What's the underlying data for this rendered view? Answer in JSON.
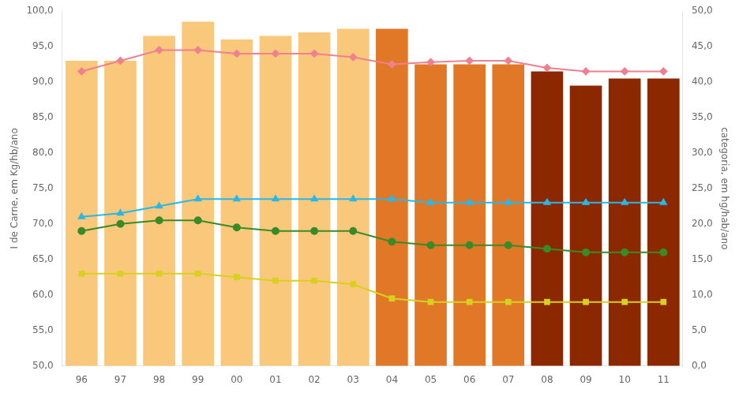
{
  "chart_data": {
    "type": "bar",
    "categories": [
      "96",
      "97",
      "98",
      "99",
      "00",
      "01",
      "02",
      "03",
      "04",
      "05",
      "06",
      "07",
      "08",
      "09",
      "10",
      "11"
    ],
    "ylabel": "I de Carne, em Kg/hb/ano",
    "y2label": "categoria, em hg/hab/ano",
    "ylim": [
      50.0,
      100.0
    ],
    "yticks": [
      {
        "value": 50.0,
        "label": "50,0"
      },
      {
        "value": 55.0,
        "label": "55,0"
      },
      {
        "value": 60.0,
        "label": "60,0"
      },
      {
        "value": 65.0,
        "label": "65,0"
      },
      {
        "value": 70.0,
        "label": "70,0"
      },
      {
        "value": 75.0,
        "label": "75,0"
      },
      {
        "value": 80.0,
        "label": "80,0"
      },
      {
        "value": 85.0,
        "label": "85,0"
      },
      {
        "value": 90.0,
        "label": "90,0"
      },
      {
        "value": 95.0,
        "label": "95,0"
      },
      {
        "value": 100.0,
        "label": "100,0"
      }
    ],
    "y2lim": [
      0.0,
      50.0
    ],
    "y2ticks": [
      {
        "value": 0.0,
        "label": "0,0"
      },
      {
        "value": 5.0,
        "label": "5,0"
      },
      {
        "value": 10.0,
        "label": "10,0"
      },
      {
        "value": 15.0,
        "label": "15,0"
      },
      {
        "value": 20.0,
        "label": "20,0"
      },
      {
        "value": 25.0,
        "label": "25,0"
      },
      {
        "value": 30.0,
        "label": "30,0"
      },
      {
        "value": 35.0,
        "label": "35,0"
      },
      {
        "value": 40.0,
        "label": "40,0"
      },
      {
        "value": 45.0,
        "label": "45,0"
      },
      {
        "value": 50.0,
        "label": "50,0"
      }
    ],
    "grid": false,
    "series": [
      {
        "type": "bar",
        "colors": [
          "#f9c87a",
          "#f9c87a",
          "#f9c87a",
          "#f9c87a",
          "#f9c87a",
          "#f9c87a",
          "#f9c87a",
          "#f9c87a",
          "#e07828",
          "#e07828",
          "#e07828",
          "#e07828",
          "#8B2800",
          "#8B2800",
          "#8B2800",
          "#8B2800"
        ],
        "values": [
          93.0,
          93.0,
          96.5,
          98.5,
          96.0,
          96.5,
          97.0,
          97.5,
          97.5,
          92.5,
          92.5,
          92.5,
          91.5,
          89.5,
          90.5,
          90.5
        ]
      },
      {
        "type": "line",
        "color": "#f08090",
        "marker": "diamond",
        "values": [
          91.5,
          93.0,
          94.5,
          94.5,
          94.0,
          94.0,
          94.0,
          93.5,
          92.5,
          92.8,
          93.0,
          93.0,
          92.0,
          91.5,
          91.5,
          91.5
        ]
      },
      {
        "type": "line",
        "color": "#28b8e8",
        "marker": "triangle",
        "values": [
          71.0,
          71.5,
          72.5,
          73.5,
          73.5,
          73.5,
          73.5,
          73.5,
          73.5,
          73.0,
          73.0,
          73.0,
          73.0,
          73.0,
          73.0,
          73.0
        ]
      },
      {
        "type": "line",
        "color": "#3a8a28",
        "marker": "circle",
        "values": [
          69.0,
          70.0,
          70.5,
          70.5,
          69.5,
          69.0,
          69.0,
          69.0,
          67.5,
          67.0,
          67.0,
          67.0,
          66.5,
          66.0,
          66.0,
          66.0
        ]
      },
      {
        "type": "line",
        "color": "#d8d020",
        "marker": "square",
        "values": [
          63.0,
          63.0,
          63.0,
          63.0,
          62.5,
          62.0,
          62.0,
          61.5,
          59.5,
          59.0,
          59.0,
          59.0,
          59.0,
          59.0,
          59.0,
          59.0
        ]
      }
    ]
  }
}
